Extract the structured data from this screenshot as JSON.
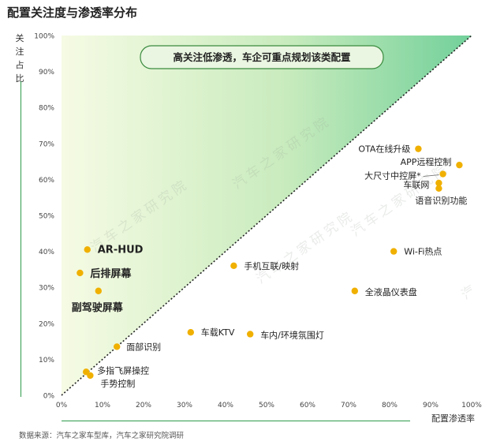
{
  "title": "配置关注度与渗透率分布",
  "source": "数据来源：汽车之家车型库，汽车之家研究院调研",
  "watermark": "汽车之家研究院",
  "colors": {
    "point": "#f0b000",
    "green_dark": "#7fd49a",
    "green_light": "#f6fbe4",
    "axis_line": "#2e9b4c"
  },
  "chart_data": {
    "type": "scatter",
    "title": "配置关注度与渗透率分布",
    "xlabel": "配置渗透率",
    "ylabel": "关注占比",
    "xlim": [
      0,
      100
    ],
    "ylim": [
      0,
      100
    ],
    "x_ticks": [
      "0%",
      "10%",
      "20%",
      "30%",
      "40%",
      "50%",
      "60%",
      "70%",
      "80%",
      "90%",
      "100%"
    ],
    "y_ticks": [
      "0%",
      "10%",
      "20%",
      "30%",
      "40%",
      "50%",
      "60%",
      "70%",
      "80%",
      "90%",
      "100%"
    ],
    "diagonal": "y = x",
    "annotation": "高关注低渗透，车企可重点规划该类配置",
    "points": [
      {
        "label": "OTA在线升级",
        "x": 87,
        "y": 68.5,
        "bold": false
      },
      {
        "label": "APP远程控制",
        "x": 97,
        "y": 64,
        "bold": false
      },
      {
        "label": "大尺寸中控屏*",
        "x": 93,
        "y": 61.5,
        "bold": false
      },
      {
        "label": "车联网",
        "x": 92,
        "y": 59,
        "bold": false
      },
      {
        "label": "语音识别功能",
        "x": 92,
        "y": 57.5,
        "bold": false
      },
      {
        "label": "Wi-Fi热点",
        "x": 81,
        "y": 40,
        "bold": false
      },
      {
        "label": "全液晶仪表盘",
        "x": 71.5,
        "y": 29,
        "bold": false
      },
      {
        "label": "手机互联/映射",
        "x": 42,
        "y": 36,
        "bold": false
      },
      {
        "label": "车载KTV",
        "x": 31.5,
        "y": 17.5,
        "bold": false
      },
      {
        "label": "车内/环境氛围灯",
        "x": 46,
        "y": 17,
        "bold": false
      },
      {
        "label": "面部识别",
        "x": 13.5,
        "y": 13.5,
        "bold": false
      },
      {
        "label": "多指飞屏操控",
        "x": 6,
        "y": 6.5,
        "bold": false
      },
      {
        "label": "手势控制",
        "x": 7,
        "y": 5.5,
        "bold": false
      },
      {
        "label": "AR-HUD",
        "x": 6.3,
        "y": 40.5,
        "bold": true
      },
      {
        "label": "后排屏幕",
        "x": 4.5,
        "y": 34,
        "bold": true
      },
      {
        "label": "副驾驶屏幕",
        "x": 9,
        "y": 29,
        "bold": true
      }
    ]
  }
}
